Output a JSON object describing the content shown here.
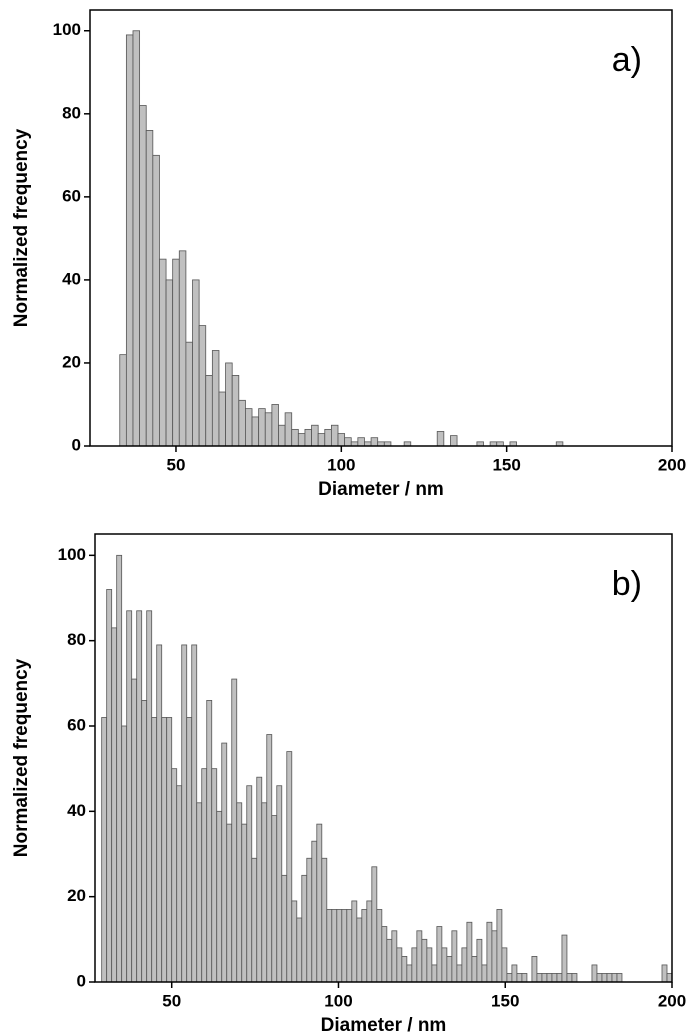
{
  "chart_data": [
    {
      "type": "histogram",
      "annotation": "a)",
      "xlabel": "Diameter / nm",
      "ylabel": "Normalized frequency",
      "color": "#c0c0c0",
      "xlim": [
        24,
        200
      ],
      "ylim": [
        0,
        105
      ],
      "xticks": [
        50,
        100,
        150,
        200
      ],
      "yticks": [
        0,
        20,
        40,
        60,
        80,
        100
      ],
      "bins": [
        33,
        35,
        37,
        39,
        41,
        43,
        45,
        47,
        49,
        51,
        53,
        55,
        57,
        59,
        61,
        63,
        65,
        67,
        69,
        71,
        73,
        75,
        77,
        79,
        81,
        83,
        85,
        87,
        89,
        91,
        93,
        95,
        97,
        99,
        101,
        103,
        105,
        107,
        109,
        111,
        113,
        115,
        117,
        119,
        121,
        123,
        125,
        127,
        129,
        131,
        133,
        135,
        137,
        139,
        141,
        143,
        145,
        147,
        149,
        151,
        153,
        155,
        157,
        159,
        161,
        163,
        165,
        167
      ],
      "values": [
        22,
        99,
        100,
        82,
        76,
        70,
        45,
        40,
        45,
        47,
        25,
        40,
        29,
        17,
        23,
        13,
        20,
        17,
        11,
        9,
        7,
        9,
        8,
        10,
        5,
        8,
        4,
        3,
        4,
        5,
        3,
        4,
        5,
        3,
        2,
        1,
        2,
        1,
        2,
        1,
        1,
        0,
        0,
        1,
        0,
        0,
        0,
        0,
        3.5,
        0,
        2.5,
        0,
        0,
        0,
        1,
        0,
        1,
        1,
        0,
        1,
        0,
        0,
        0,
        0,
        0,
        0,
        1
      ]
    },
    {
      "type": "histogram",
      "annotation": "b)",
      "xlabel": "Diameter / nm",
      "ylabel": "Normalized frequency",
      "color": "#c0c0c0",
      "xlim": [
        27,
        200
      ],
      "ylim": [
        0,
        105
      ],
      "xticks": [
        50,
        100,
        150,
        200
      ],
      "yticks": [
        0,
        20,
        40,
        60,
        80,
        100
      ],
      "bins": [
        29,
        30.5,
        32,
        33.5,
        35,
        36.5,
        38,
        39.5,
        41,
        42.5,
        44,
        45.5,
        47,
        48.5,
        50,
        51.5,
        53,
        54.5,
        56,
        57.5,
        59,
        60.5,
        62,
        63.5,
        65,
        66.5,
        68,
        69.5,
        71,
        72.5,
        74,
        75.5,
        77,
        78.5,
        80,
        81.5,
        83,
        84.5,
        86,
        87.5,
        89,
        90.5,
        92,
        93.5,
        95,
        96.5,
        98,
        99.5,
        101,
        102.5,
        104,
        105.5,
        107,
        108.5,
        110,
        111.5,
        113,
        114.5,
        116,
        117.5,
        119,
        120.5,
        122,
        123.5,
        125,
        126.5,
        128,
        129.5,
        131,
        132.5,
        134,
        135.5,
        137,
        138.5,
        140,
        141.5,
        143,
        144.5,
        146,
        147.5,
        149,
        150.5,
        152,
        153.5,
        155,
        156.5,
        158,
        159.5,
        161,
        162.5,
        164,
        165.5,
        167,
        168.5,
        170,
        171.5,
        173,
        174.5,
        176,
        177.5,
        179,
        180.5,
        182,
        183.5,
        185,
        186.5,
        188,
        189.5,
        191,
        192.5,
        194,
        195.5,
        197,
        198.5,
        200
      ],
      "values": [
        62,
        92,
        83,
        100,
        60,
        87,
        71,
        87,
        66,
        87,
        62,
        79,
        62,
        62,
        50,
        46,
        79,
        62,
        79,
        42,
        50,
        66,
        50,
        40,
        56,
        37,
        71,
        42,
        37,
        46,
        29,
        48,
        42,
        58,
        39,
        46,
        25,
        54,
        19,
        15,
        25,
        29,
        33,
        37,
        29,
        17,
        17,
        17,
        17,
        17,
        19,
        15,
        17,
        19,
        27,
        17,
        13,
        10,
        12,
        8,
        6,
        4,
        8,
        12,
        10,
        8,
        4,
        13,
        8,
        6,
        12,
        4,
        8,
        14,
        6,
        10,
        4,
        14,
        12,
        17,
        8,
        2,
        4,
        2,
        2,
        0,
        6,
        2,
        2,
        2,
        2,
        2,
        11,
        2,
        2,
        0,
        0,
        0,
        4,
        2,
        2,
        2,
        2,
        2,
        0,
        0,
        0,
        0,
        0,
        0,
        0,
        0,
        4,
        2
      ]
    }
  ]
}
